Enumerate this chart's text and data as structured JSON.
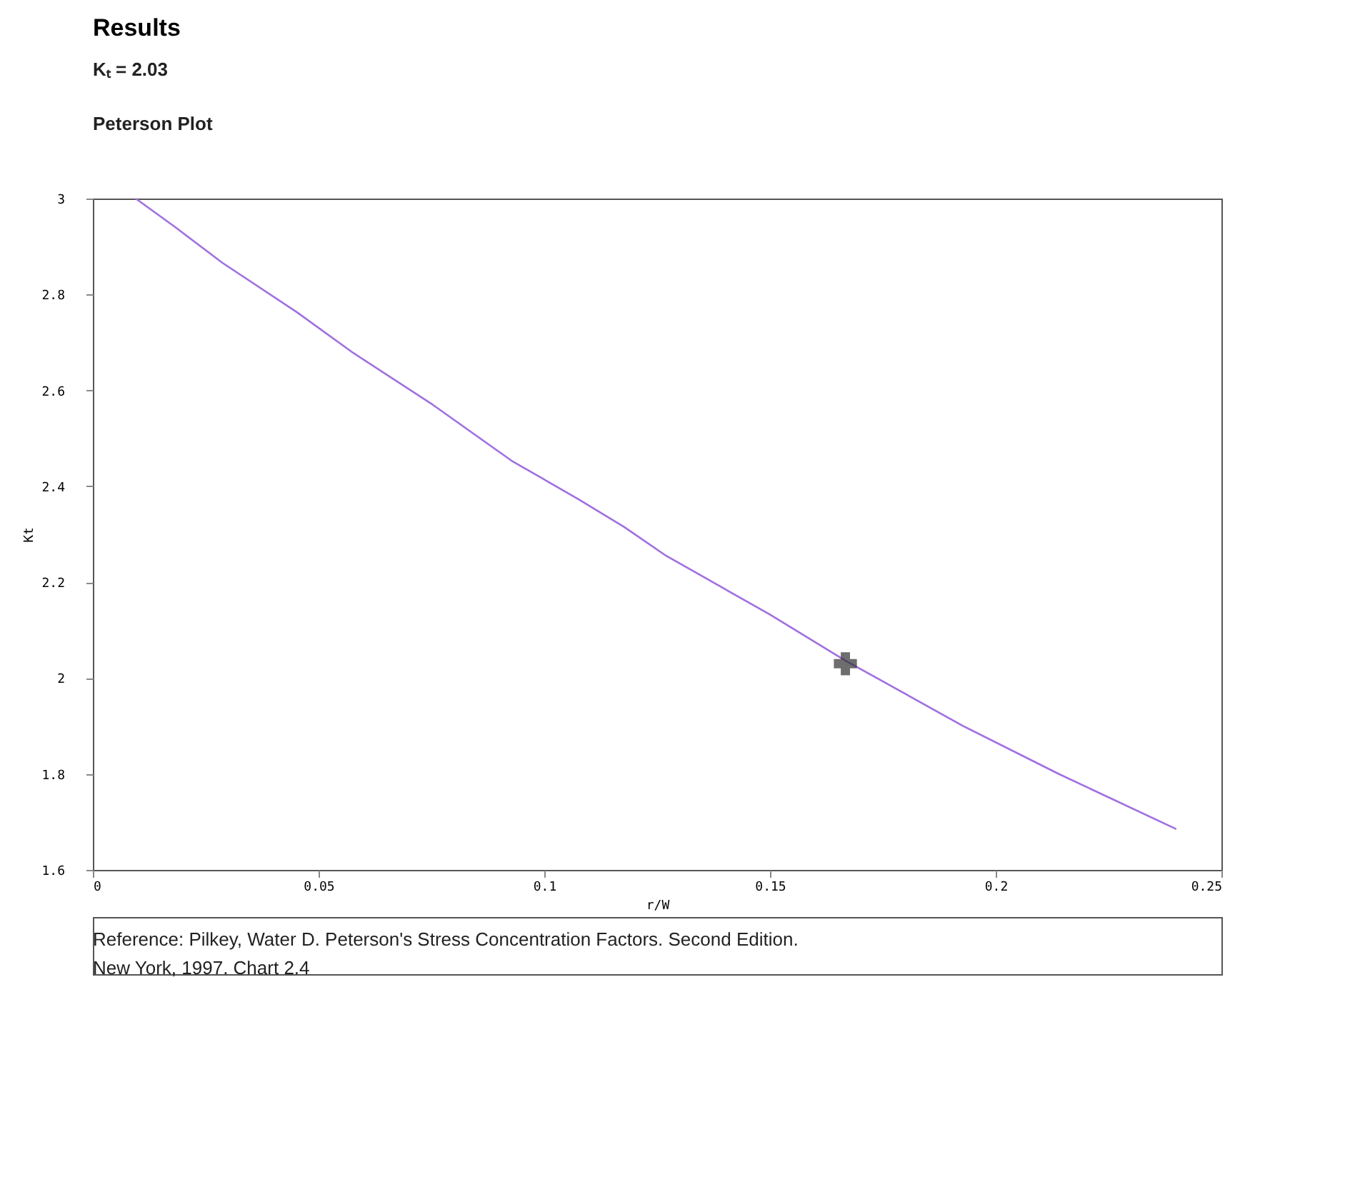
{
  "chart_data": {
    "type": "line",
    "title": "Results",
    "subtitle": [
      "Kₜ = 2.03",
      "Peterson Plot"
    ],
    "xlabel": "r/W",
    "ylabel": "Kt",
    "x": [
      0.0095,
      0.0183,
      0.0287,
      0.0452,
      0.0577,
      0.0753,
      0.0928,
      0.1074,
      0.1177,
      0.127,
      0.1499,
      0.1666,
      0.1928,
      0.214,
      0.24
    ],
    "series": [
      {
        "color": "#a070e0",
        "values": [
          3.0,
          2.94,
          2.866,
          2.763,
          2.678,
          2.57,
          2.453,
          2.374,
          2.315,
          2.255,
          2.133,
          2.037,
          1.9,
          1.8,
          1.685
        ],
        "marker": "none"
      },
      {
        "type": "scatter",
        "color": "#303030",
        "x": [
          0.1667
        ],
        "values": [
          2.03
        ],
        "marker": "cross"
      }
    ],
    "xlim": [
      0,
      0.25
    ],
    "xticks": [
      0,
      0.05,
      0.1,
      0.15,
      0.2,
      0.25
    ],
    "ylim": [
      1.6,
      3
    ],
    "yticks": [
      1.6,
      1.8,
      2,
      2.2,
      2.4,
      2.6,
      2.8,
      3
    ],
    "grid": false,
    "legend": false,
    "annotations": [
      "Reference: Pilkey, Water D. Peterson's Stress Concentration Factors. Second Edition.",
      "New York, 1997. Chart 2.4"
    ]
  }
}
